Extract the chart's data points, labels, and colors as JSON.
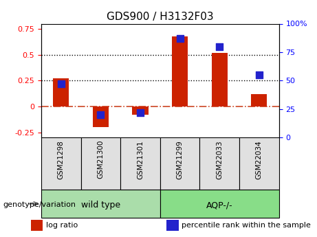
{
  "title": "GDS900 / H3132F03",
  "samples": [
    "GSM21298",
    "GSM21300",
    "GSM21301",
    "GSM21299",
    "GSM22033",
    "GSM22034"
  ],
  "log_ratio": [
    0.27,
    -0.2,
    -0.08,
    0.68,
    0.52,
    0.12
  ],
  "percentile_rank": [
    0.47,
    0.2,
    0.22,
    0.87,
    0.8,
    0.55
  ],
  "groups": [
    {
      "label": "wild type",
      "start": 0,
      "end": 3,
      "color": "#aaddaa"
    },
    {
      "label": "AQP-/-",
      "start": 3,
      "end": 6,
      "color": "#88dd88"
    }
  ],
  "group_label": "genotype/variation",
  "ylim_left": [
    -0.3,
    0.8
  ],
  "ylim_right": [
    0,
    100
  ],
  "yticks_left": [
    -0.25,
    0.0,
    0.25,
    0.5,
    0.75
  ],
  "ytick_labels_left": [
    "-0.25",
    "0",
    "0.25",
    "0.5",
    "0.75"
  ],
  "yticks_right": [
    0,
    25,
    50,
    75,
    100
  ],
  "ytick_labels_right": [
    "0",
    "25",
    "50",
    "75",
    "100%"
  ],
  "hlines": [
    0.25,
    0.5
  ],
  "bar_color": "#cc2200",
  "dot_color": "#2222cc",
  "zero_line_color": "#cc4422",
  "dot_size": 60,
  "bar_width": 0.4,
  "legend_items": [
    {
      "label": "log ratio",
      "color": "#cc2200"
    },
    {
      "label": "percentile rank within the sample",
      "color": "#2222cc"
    }
  ]
}
